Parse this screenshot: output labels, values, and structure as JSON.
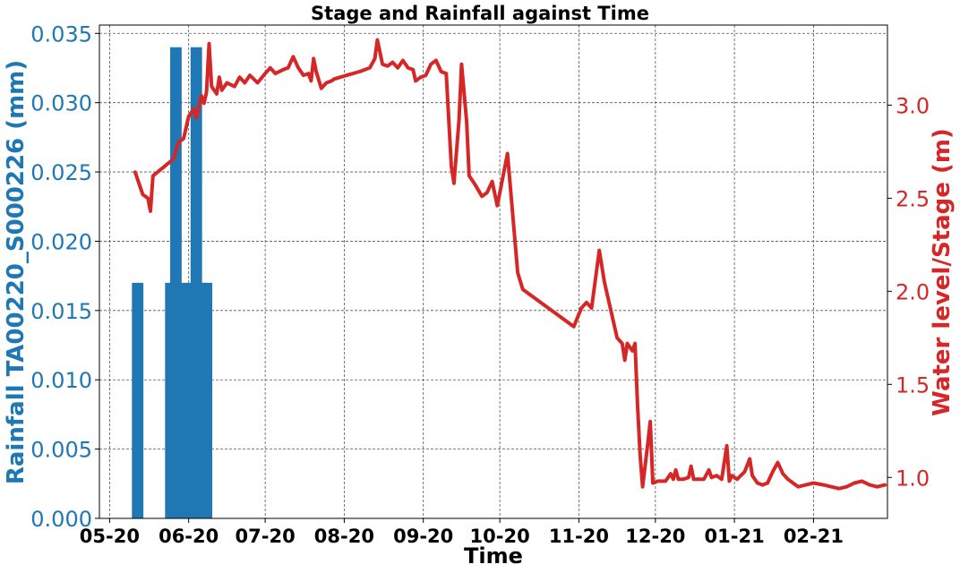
{
  "chart_data": {
    "type": "bar+line",
    "title": "Stage and Rainfall against Time",
    "xlabel": "Time",
    "x_ticks": [
      "05-20",
      "06-20",
      "07-20",
      "08-20",
      "09-20",
      "10-20",
      "11-20",
      "12-20",
      "01-21",
      "02-21"
    ],
    "x_range": [
      "2020-04-27",
      "2021-03-02"
    ],
    "grid": true,
    "left_axis": {
      "label": "Rainfall TA00220_S000226 (mm)",
      "color": "#1f77b4",
      "ylim": [
        0,
        0.0356
      ],
      "ticks": [
        "0.000",
        "0.005",
        "0.010",
        "0.015",
        "0.020",
        "0.025",
        "0.030",
        "0.035"
      ],
      "tick_values": [
        0,
        0.005,
        0.01,
        0.015,
        0.02,
        0.025,
        0.03,
        0.035
      ]
    },
    "right_axis": {
      "label": "Water level/Stage (m)",
      "color": "#d62728",
      "ylim": [
        0.78,
        3.43
      ],
      "ticks": [
        "1.0",
        "1.5",
        "2.0",
        "2.5",
        "3.0"
      ],
      "tick_values": [
        1.0,
        1.5,
        2.0,
        2.5,
        3.0
      ]
    },
    "series": [
      {
        "type": "bar",
        "axis": "left",
        "color": "#1f77b4",
        "bar_width_days": 4.5,
        "points": [
          [
            "2020-05-12",
            0.017
          ],
          [
            "2020-05-25",
            0.017
          ],
          [
            "2020-05-27",
            0.034
          ],
          [
            "2020-05-29",
            0.017
          ],
          [
            "2020-06-02",
            0.017
          ],
          [
            "2020-06-04",
            0.034
          ],
          [
            "2020-06-06",
            0.017
          ],
          [
            "2020-06-08",
            0.017
          ]
        ]
      },
      {
        "type": "line",
        "axis": "right",
        "color": "#d62728",
        "points": [
          [
            "2020-05-11",
            2.64
          ],
          [
            "2020-05-14",
            2.52
          ],
          [
            "2020-05-16",
            2.5
          ],
          [
            "2020-05-17",
            2.43
          ],
          [
            "2020-05-18",
            2.62
          ],
          [
            "2020-05-26",
            2.71
          ],
          [
            "2020-05-28",
            2.8
          ],
          [
            "2020-05-30",
            2.82
          ],
          [
            "2020-06-01",
            2.94
          ],
          [
            "2020-06-03",
            2.98
          ],
          [
            "2020-06-04",
            2.93
          ],
          [
            "2020-06-06",
            3.05
          ],
          [
            "2020-06-07",
            3.01
          ],
          [
            "2020-06-08",
            3.07
          ],
          [
            "2020-06-09",
            3.33
          ],
          [
            "2020-06-10",
            3.1
          ],
          [
            "2020-06-12",
            3.06
          ],
          [
            "2020-06-13",
            3.15
          ],
          [
            "2020-06-14",
            3.08
          ],
          [
            "2020-06-16",
            3.12
          ],
          [
            "2020-06-19",
            3.1
          ],
          [
            "2020-06-21",
            3.15
          ],
          [
            "2020-06-23",
            3.12
          ],
          [
            "2020-06-25",
            3.16
          ],
          [
            "2020-06-28",
            3.12
          ],
          [
            "2020-07-01",
            3.17
          ],
          [
            "2020-07-03",
            3.2
          ],
          [
            "2020-07-05",
            3.17
          ],
          [
            "2020-07-08",
            3.19
          ],
          [
            "2020-07-10",
            3.2
          ],
          [
            "2020-07-12",
            3.26
          ],
          [
            "2020-07-14",
            3.2
          ],
          [
            "2020-07-16",
            3.16
          ],
          [
            "2020-07-18",
            3.17
          ],
          [
            "2020-07-19",
            3.13
          ],
          [
            "2020-07-20",
            3.25
          ],
          [
            "2020-07-21",
            3.18
          ],
          [
            "2020-07-23",
            3.09
          ],
          [
            "2020-07-25",
            3.12
          ],
          [
            "2020-07-27",
            3.13
          ],
          [
            "2020-07-28",
            3.14
          ],
          [
            "2020-08-02",
            3.16
          ],
          [
            "2020-08-07",
            3.18
          ],
          [
            "2020-08-11",
            3.2
          ],
          [
            "2020-08-13",
            3.25
          ],
          [
            "2020-08-14",
            3.35
          ],
          [
            "2020-08-16",
            3.22
          ],
          [
            "2020-08-18",
            3.21
          ],
          [
            "2020-08-20",
            3.23
          ],
          [
            "2020-08-22",
            3.2
          ],
          [
            "2020-08-24",
            3.24
          ],
          [
            "2020-08-26",
            3.2
          ],
          [
            "2020-08-28",
            3.19
          ],
          [
            "2020-08-29",
            3.13
          ],
          [
            "2020-08-31",
            3.15
          ],
          [
            "2020-09-02",
            3.16
          ],
          [
            "2020-09-04",
            3.22
          ],
          [
            "2020-09-06",
            3.24
          ],
          [
            "2020-09-08",
            3.18
          ],
          [
            "2020-09-10",
            3.17
          ],
          [
            "2020-09-12",
            2.67
          ],
          [
            "2020-09-13",
            2.58
          ],
          [
            "2020-09-15",
            2.92
          ],
          [
            "2020-09-16",
            3.22
          ],
          [
            "2020-09-18",
            2.91
          ],
          [
            "2020-09-19",
            2.62
          ],
          [
            "2020-09-21",
            2.58
          ],
          [
            "2020-09-24",
            2.51
          ],
          [
            "2020-09-26",
            2.53
          ],
          [
            "2020-09-28",
            2.59
          ],
          [
            "2020-09-30",
            2.46
          ],
          [
            "2020-10-02",
            2.6
          ],
          [
            "2020-10-04",
            2.74
          ],
          [
            "2020-10-08",
            2.1
          ],
          [
            "2020-10-10",
            2.01
          ],
          [
            "2020-10-20",
            1.91
          ],
          [
            "2020-10-30",
            1.81
          ],
          [
            "2020-11-02",
            1.91
          ],
          [
            "2020-11-04",
            1.94
          ],
          [
            "2020-11-06",
            1.91
          ],
          [
            "2020-11-09",
            2.22
          ],
          [
            "2020-11-11",
            2.05
          ],
          [
            "2020-11-13",
            1.93
          ],
          [
            "2020-11-16",
            1.75
          ],
          [
            "2020-11-18",
            1.72
          ],
          [
            "2020-11-19",
            1.63
          ],
          [
            "2020-11-20",
            1.72
          ],
          [
            "2020-11-22",
            1.68
          ],
          [
            "2020-11-23",
            1.72
          ],
          [
            "2020-11-24",
            1.39
          ],
          [
            "2020-11-25",
            1.12
          ],
          [
            "2020-11-26",
            0.95
          ],
          [
            "2020-11-28",
            1.18
          ],
          [
            "2020-11-29",
            1.3
          ],
          [
            "2020-11-30",
            0.97
          ],
          [
            "2020-12-02",
            0.98
          ],
          [
            "2020-12-05",
            0.98
          ],
          [
            "2020-12-07",
            1.02
          ],
          [
            "2020-12-08",
            0.99
          ],
          [
            "2020-12-09",
            1.04
          ],
          [
            "2020-12-10",
            0.99
          ],
          [
            "2020-12-12",
            0.99
          ],
          [
            "2020-12-14",
            1.0
          ],
          [
            "2020-12-15",
            1.06
          ],
          [
            "2020-12-16",
            0.99
          ],
          [
            "2020-12-18",
            0.99
          ],
          [
            "2020-12-20",
            0.99
          ],
          [
            "2020-12-22",
            1.04
          ],
          [
            "2020-12-23",
            1.0
          ],
          [
            "2020-12-25",
            1.01
          ],
          [
            "2020-12-27",
            0.99
          ],
          [
            "2020-12-29",
            1.17
          ],
          [
            "2020-12-30",
            0.98
          ],
          [
            "2020-12-31",
            1.01
          ],
          [
            "2021-01-02",
            0.99
          ],
          [
            "2021-01-05",
            1.03
          ],
          [
            "2021-01-07",
            1.1
          ],
          [
            "2021-01-08",
            1.01
          ],
          [
            "2021-01-10",
            0.97
          ],
          [
            "2021-01-12",
            0.96
          ],
          [
            "2021-01-14",
            0.97
          ],
          [
            "2021-01-16",
            1.03
          ],
          [
            "2021-01-18",
            1.08
          ],
          [
            "2021-01-20",
            1.02
          ],
          [
            "2021-01-22",
            0.99
          ],
          [
            "2021-01-24",
            0.97
          ],
          [
            "2021-01-26",
            0.95
          ],
          [
            "2021-01-29",
            0.96
          ],
          [
            "2021-02-01",
            0.97
          ],
          [
            "2021-02-05",
            0.96
          ],
          [
            "2021-02-08",
            0.95
          ],
          [
            "2021-02-11",
            0.94
          ],
          [
            "2021-02-14",
            0.95
          ],
          [
            "2021-02-17",
            0.97
          ],
          [
            "2021-02-20",
            0.98
          ],
          [
            "2021-02-23",
            0.96
          ],
          [
            "2021-02-26",
            0.95
          ],
          [
            "2021-03-01",
            0.96
          ]
        ]
      }
    ]
  }
}
